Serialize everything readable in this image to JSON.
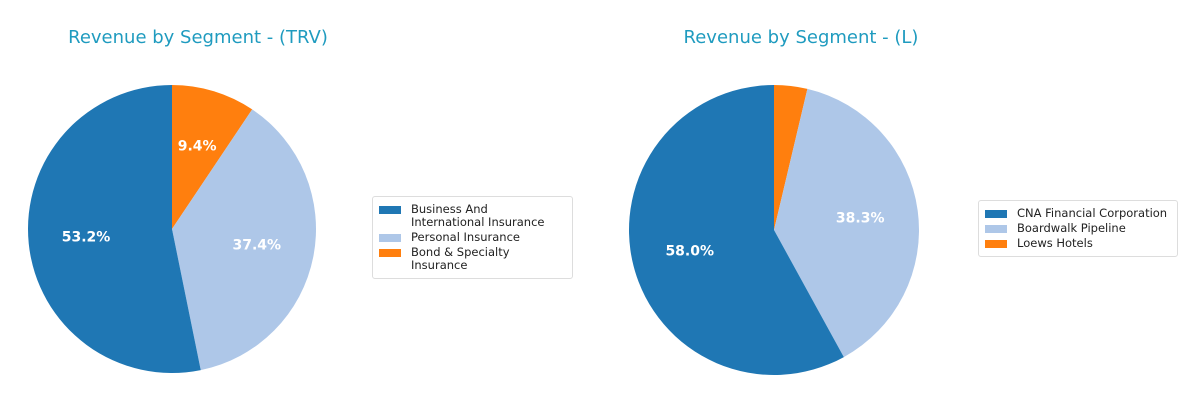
{
  "colors": {
    "title": "#1f9bbf",
    "dark_blue": "#1f77b4",
    "light_blue": "#aec7e8",
    "orange": "#ff7f0e"
  },
  "chart_data": [
    {
      "type": "pie",
      "title": "Revenue by Segment - (TRV)",
      "categories": [
        "Business And International Insurance",
        "Personal Insurance",
        "Bond & Specialty Insurance"
      ],
      "values": [
        53.2,
        37.4,
        9.4
      ],
      "labels": [
        "53.2%",
        "37.4%",
        "9.4%"
      ],
      "colors": [
        "#1f77b4",
        "#aec7e8",
        "#ff7f0e"
      ],
      "legend_position": "right"
    },
    {
      "type": "pie",
      "title": "Revenue by Segment - (L)",
      "categories": [
        "CNA Financial Corporation",
        "Boardwalk Pipeline",
        "Loews Hotels"
      ],
      "values": [
        58.0,
        38.3,
        3.7
      ],
      "labels": [
        "58.0%",
        "38.3%",
        ""
      ],
      "colors": [
        "#1f77b4",
        "#aec7e8",
        "#ff7f0e"
      ],
      "legend_position": "right"
    }
  ],
  "legend_left": [
    {
      "label": "Business And International Insurance",
      "color": "#1f77b4"
    },
    {
      "label": "Personal Insurance",
      "color": "#aec7e8"
    },
    {
      "label": "Bond & Specialty Insurance",
      "color": "#ff7f0e"
    }
  ],
  "legend_right": [
    {
      "label": "CNA Financial Corporation",
      "color": "#1f77b4"
    },
    {
      "label": "Boardwalk Pipeline",
      "color": "#aec7e8"
    },
    {
      "label": "Loews Hotels",
      "color": "#ff7f0e"
    }
  ]
}
